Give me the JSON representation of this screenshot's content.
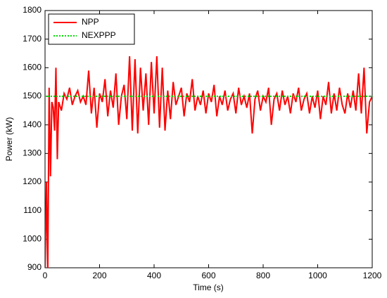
{
  "chart_data": {
    "type": "line",
    "xlabel": "Time (s)",
    "ylabel": "Power (kW)",
    "xlim": [
      0,
      1200
    ],
    "xticks": [
      0,
      200,
      400,
      600,
      800,
      1000,
      1200
    ],
    "ylim": [
      900,
      1800
    ],
    "yticks": [
      900,
      1000,
      1100,
      1200,
      1300,
      1400,
      1500,
      1600,
      1700,
      1800
    ],
    "legend": "upper left",
    "series": [
      {
        "name": "NPP",
        "color": "#ff0000",
        "style": "solid",
        "x": [
          0,
          5,
          10,
          15,
          20,
          25,
          30,
          35,
          40,
          45,
          50,
          60,
          70,
          80,
          90,
          100,
          110,
          120,
          130,
          140,
          150,
          160,
          170,
          180,
          190,
          200,
          210,
          220,
          230,
          240,
          250,
          260,
          270,
          280,
          290,
          300,
          310,
          320,
          330,
          340,
          350,
          360,
          370,
          380,
          390,
          400,
          410,
          420,
          430,
          440,
          450,
          460,
          470,
          480,
          490,
          500,
          510,
          520,
          530,
          540,
          550,
          560,
          570,
          580,
          590,
          600,
          610,
          620,
          630,
          640,
          650,
          660,
          670,
          680,
          690,
          700,
          710,
          720,
          730,
          740,
          750,
          760,
          770,
          780,
          790,
          800,
          810,
          820,
          830,
          840,
          850,
          860,
          870,
          880,
          890,
          900,
          910,
          920,
          930,
          940,
          950,
          960,
          970,
          980,
          990,
          1000,
          1010,
          1020,
          1030,
          1040,
          1050,
          1060,
          1070,
          1080,
          1090,
          1100,
          1110,
          1120,
          1130,
          1140,
          1150,
          1160,
          1170,
          1180,
          1190,
          1200
        ],
        "values": [
          880,
          1200,
          880,
          1530,
          1220,
          1480,
          1460,
          1380,
          1600,
          1280,
          1480,
          1450,
          1510,
          1490,
          1530,
          1470,
          1500,
          1520,
          1480,
          1500,
          1470,
          1590,
          1440,
          1530,
          1390,
          1510,
          1480,
          1560,
          1430,
          1520,
          1460,
          1580,
          1400,
          1500,
          1540,
          1420,
          1640,
          1380,
          1630,
          1370,
          1600,
          1450,
          1580,
          1400,
          1620,
          1440,
          1640,
          1390,
          1600,
          1380,
          1520,
          1420,
          1550,
          1470,
          1500,
          1530,
          1430,
          1510,
          1480,
          1560,
          1450,
          1500,
          1470,
          1520,
          1440,
          1510,
          1480,
          1540,
          1430,
          1500,
          1470,
          1520,
          1450,
          1490,
          1510,
          1440,
          1530,
          1470,
          1500,
          1460,
          1510,
          1370,
          1490,
          1520,
          1450,
          1500,
          1480,
          1530,
          1400,
          1490,
          1510,
          1450,
          1520,
          1470,
          1500,
          1440,
          1510,
          1480,
          1530,
          1450,
          1490,
          1510,
          1440,
          1500,
          1460,
          1520,
          1420,
          1500,
          1470,
          1550,
          1440,
          1510,
          1450,
          1530,
          1470,
          1440,
          1510,
          1460,
          1520,
          1450,
          1580,
          1440,
          1600,
          1370,
          1480,
          1500
        ]
      },
      {
        "name": "NEXPPP",
        "color": "#00dd00",
        "style": "dotted",
        "x": [
          0,
          1200
        ],
        "values": [
          1500,
          1500
        ]
      }
    ]
  }
}
